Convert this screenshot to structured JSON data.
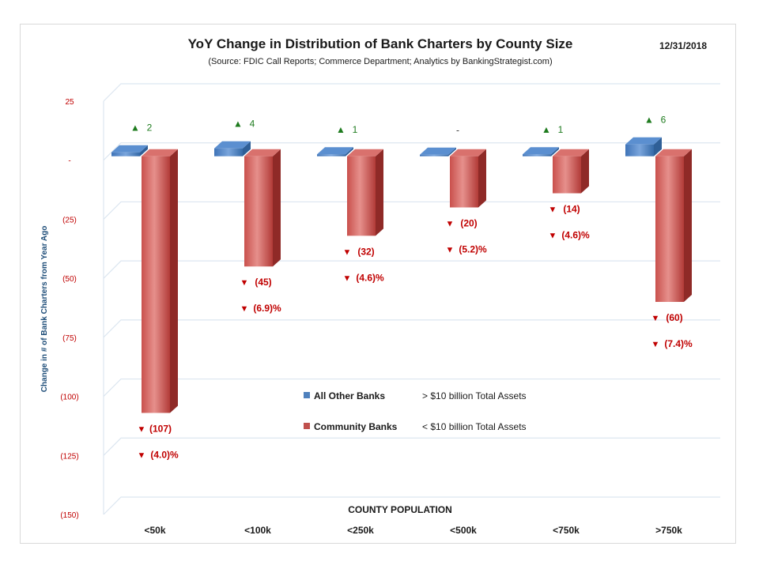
{
  "chart_data": {
    "type": "bar",
    "title": "YoY Change in Distribution of Bank Charters by County Size",
    "subtitle": "(Source: FDIC Call Reports; Commerce Department; Analytics by BankingStrategist.com)",
    "date": "12/31/2018",
    "xlabel": "COUNTY POPULATION",
    "ylabel": "Change in # of Bank Charters from Year Ago",
    "ylim": [
      -150,
      25
    ],
    "yticks": [
      {
        "value": 25,
        "label": "25"
      },
      {
        "value": 0,
        "label": "-"
      },
      {
        "value": -25,
        "label": "(25)"
      },
      {
        "value": -50,
        "label": "(50)"
      },
      {
        "value": -75,
        "label": "(75)"
      },
      {
        "value": -100,
        "label": "(100)"
      },
      {
        "value": -125,
        "label": "(125)"
      },
      {
        "value": -150,
        "label": "(150)"
      }
    ],
    "grid": true,
    "categories": [
      "<50k",
      "<100k",
      "<250k",
      "<500k",
      "<750k",
      ">750k"
    ],
    "series": [
      {
        "name": "All Other Banks",
        "color": "#4f81bd",
        "values": [
          2,
          4,
          1,
          0,
          1,
          6
        ],
        "labels": [
          "2",
          "4",
          "1",
          "-",
          "1",
          "6"
        ],
        "arrows": [
          "▲",
          "▲",
          "▲",
          "",
          "▲",
          "▲"
        ]
      },
      {
        "name": "Community Banks",
        "color": "#c0504d",
        "values": [
          -107,
          -45,
          -32,
          -20,
          -14,
          -60
        ],
        "labels": [
          "(107)",
          "(45)",
          "(32)",
          "(20)",
          "(14)",
          "(60)"
        ],
        "pct_labels": [
          "(4.0)%",
          "(6.9)%",
          "(4.6)%",
          "(5.2)%",
          "(4.6)%",
          "(7.4)%"
        ],
        "arrows": [
          "▼",
          "▼",
          "▼",
          "▼",
          "▼",
          "▼"
        ]
      }
    ],
    "legend": [
      {
        "name": "All Other Banks",
        "note": "> $10 billion Total Assets",
        "color": "#4f81bd"
      },
      {
        "name": "Community Banks",
        "note": "< $10 billion Total Assets",
        "color": "#c0504d"
      }
    ],
    "legend_position": "center",
    "colors": {
      "up": "#1e7b1e",
      "down": "#c00000",
      "axis_text": "#c00000",
      "ylabel": "#1f4e79",
      "title": "#1a1a1a"
    }
  }
}
